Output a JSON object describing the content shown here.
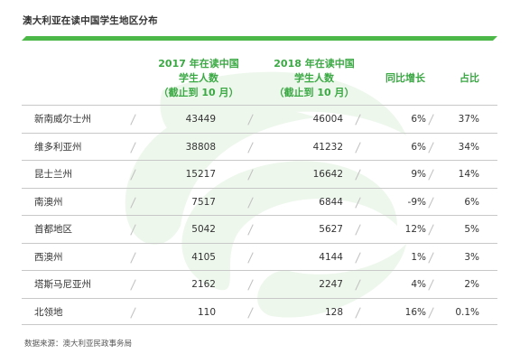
{
  "title": "澳大利亚在读中国学生地区分布",
  "colors": {
    "accent": "#4cb848",
    "header_text": "#3aa843",
    "watermark": "#e9f5e8"
  },
  "headers": {
    "col2017": {
      "line1": "2017 年在读中国",
      "line2": "学生人数",
      "line3": "（截止到 10 月）"
    },
    "col2018": {
      "line1": "2018 年在读中国",
      "line2": "学生人数",
      "line3": "（截止到 10 月）"
    },
    "growth": "同比增长",
    "share": "占比"
  },
  "rows": [
    {
      "region": "新南威尔士州",
      "y2017": "43449",
      "y2018": "46004",
      "growth": "6%",
      "share": "37%"
    },
    {
      "region": "维多利亚州",
      "y2017": "38808",
      "y2018": "41232",
      "growth": "6%",
      "share": "34%"
    },
    {
      "region": "昆士兰州",
      "y2017": "15217",
      "y2018": "16642",
      "growth": "9%",
      "share": "14%"
    },
    {
      "region": "南澳州",
      "y2017": "7517",
      "y2018": "6844",
      "growth": "-9%",
      "share": "6%"
    },
    {
      "region": "首都地区",
      "y2017": "5042",
      "y2018": "5627",
      "growth": "12%",
      "share": "5%"
    },
    {
      "region": "西澳州",
      "y2017": "4105",
      "y2018": "4144",
      "growth": "1%",
      "share": "3%"
    },
    {
      "region": "塔斯马尼亚州",
      "y2017": "2162",
      "y2018": "2247",
      "growth": "4%",
      "share": "2%"
    },
    {
      "region": "北领地",
      "y2017": "110",
      "y2018": "128",
      "growth": "16%",
      "share": "0.1%"
    }
  ],
  "source": "数据来源：澳大利亚民政事务局"
}
